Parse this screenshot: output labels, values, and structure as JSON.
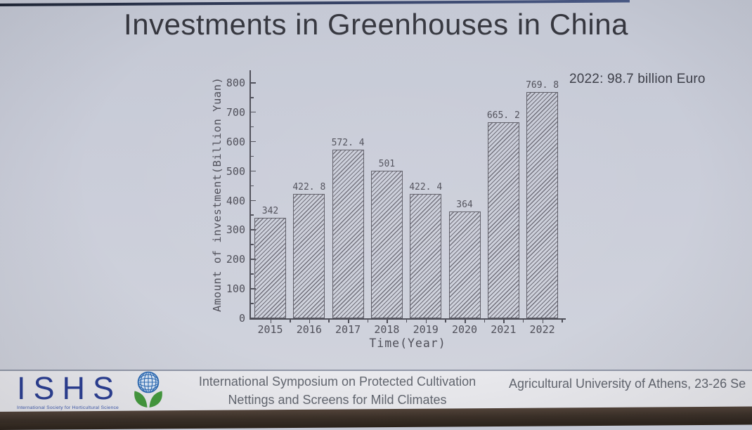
{
  "slide": {
    "title": "Investments in Greenhouses in China",
    "annotation": "2022: 98.7 billion Euro"
  },
  "chart_data": {
    "type": "bar",
    "title": "Investments in Greenhouses in China",
    "categories": [
      "2015",
      "2016",
      "2017",
      "2018",
      "2019",
      "2020",
      "2021",
      "2022"
    ],
    "values": [
      342,
      422.8,
      572.4,
      501,
      422.4,
      364,
      665.2,
      769.8
    ],
    "value_labels": [
      "342",
      "422. 8",
      "572. 4",
      "501",
      "422. 4",
      "364",
      "665. 2",
      "769. 8"
    ],
    "xlabel": "Time(Year)",
    "ylabel": "Amount of investment(Billion Yuan)",
    "ylim": [
      0,
      800
    ],
    "ytick_step": 100,
    "yminor_step": 50,
    "grid": false,
    "legend": "none",
    "bar_style": "diagonal-hatch"
  },
  "footer": {
    "logo_text": "ISHS",
    "logo_subtext": "International Society for Horticultural Science",
    "logo_globe_icon": "globe-plant-icon",
    "symposium_line1": "International Symposium on Protected Cultivation",
    "symposium_line2": "Nettings and Screens for Mild Climates",
    "venue_text": "Agricultural University of Athens, 23-26 Se"
  },
  "colors": {
    "slide_bg": "#c9cdd8",
    "title_ink": "#36373f",
    "chart_ink": "#4e4e58",
    "bar_hatch": "#6e6d78",
    "logo_blue": "#2b3f93",
    "footer_bg": "#eaeaee",
    "footer_ink": "#62666f",
    "bottom_band": "#483a2e",
    "top_line": "#232a3e"
  }
}
